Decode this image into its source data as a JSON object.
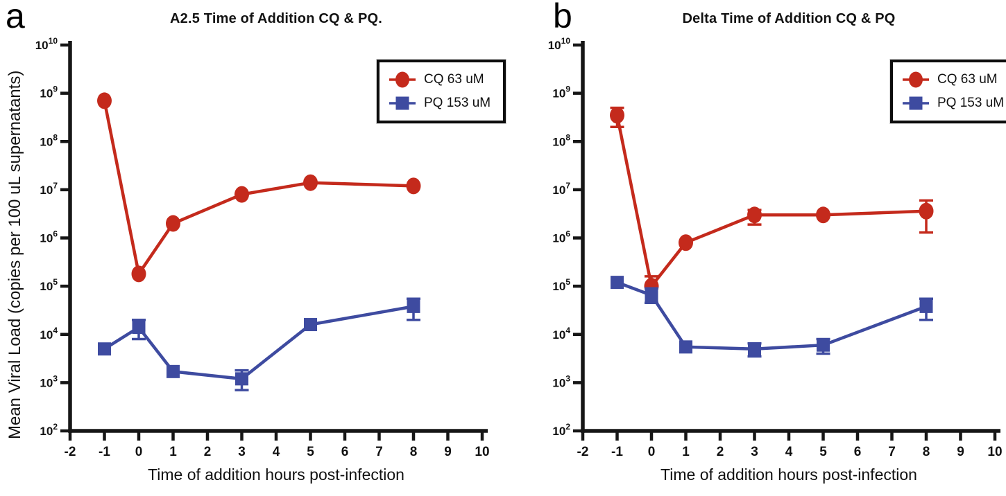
{
  "figure_colors": {
    "cq_red": "#c42a1c",
    "pq_blue": "#3e4ba0",
    "axis_black": "#161616"
  },
  "chart_data": [
    {
      "type": "line",
      "panel_letter": "a",
      "title": "A2.5 Time of Addition CQ & PQ.",
      "xlabel": "Time of addition hours post-infection",
      "ylabel": "Mean Viral Load  (copies per 100 uL supernatants)",
      "xlim": [
        -2,
        10
      ],
      "x_ticks": [
        -2,
        -1,
        0,
        1,
        2,
        3,
        4,
        5,
        6,
        7,
        8,
        9,
        10
      ],
      "y_scale": "log10",
      "y_tick_exponents": [
        10,
        9,
        8,
        7,
        6,
        5,
        4,
        3,
        2
      ],
      "ylim": [
        100.0,
        10000000000.0
      ],
      "grid": false,
      "legend_position": "upper right",
      "legend": [
        {
          "label": "CQ 63 uM",
          "marker": "circle",
          "color": "#c42a1c"
        },
        {
          "label": "PQ 153 uM",
          "marker": "square",
          "color": "#3e4ba0"
        }
      ],
      "series": [
        {
          "name": "CQ 63 uM",
          "marker": "circle",
          "color": "#c42a1c",
          "x": [
            -1,
            0,
            1,
            3,
            5,
            8
          ],
          "y": [
            700000000.0,
            180000.0,
            2000000.0,
            8000000.0,
            14000000.0,
            12000000.0
          ],
          "err_low": [
            null,
            null,
            null,
            null,
            null,
            null
          ],
          "err_high": [
            null,
            null,
            null,
            null,
            null,
            null
          ]
        },
        {
          "name": "PQ 153 uM",
          "marker": "square",
          "color": "#3e4ba0",
          "x": [
            -1,
            0,
            1,
            3,
            5,
            8
          ],
          "y": [
            5000.0,
            14000.0,
            1700.0,
            1200.0,
            16000.0,
            38000.0
          ],
          "err_low": [
            null,
            8000.0,
            null,
            700.0,
            null,
            20000.0
          ],
          "err_high": [
            null,
            20000.0,
            null,
            1800.0,
            null,
            55000.0
          ]
        }
      ]
    },
    {
      "type": "line",
      "panel_letter": "b",
      "title": "Delta Time of Addition CQ & PQ",
      "xlabel": "Time of addition hours post-infection",
      "xlim": [
        -2,
        10
      ],
      "x_ticks": [
        -2,
        -1,
        0,
        1,
        2,
        3,
        4,
        5,
        6,
        7,
        8,
        9,
        10
      ],
      "y_scale": "log10",
      "y_tick_exponents": [
        10,
        9,
        8,
        7,
        6,
        5,
        4,
        3,
        2
      ],
      "ylim": [
        100.0,
        10000000000.0
      ],
      "grid": false,
      "legend_position": "upper right",
      "legend": [
        {
          "label": "CQ 63 uM",
          "marker": "circle",
          "color": "#c42a1c"
        },
        {
          "label": "PQ 153 uM",
          "marker": "square",
          "color": "#3e4ba0"
        }
      ],
      "series": [
        {
          "name": "CQ 63 uM",
          "marker": "circle",
          "color": "#c42a1c",
          "x": [
            -1,
            0,
            1,
            3,
            5,
            8
          ],
          "y": [
            350000000.0,
            100000.0,
            800000.0,
            3000000.0,
            3000000.0,
            3600000.0
          ],
          "err_low": [
            200000000.0,
            45000.0,
            null,
            1900000.0,
            null,
            1300000.0
          ],
          "err_high": [
            500000000.0,
            160000.0,
            null,
            3800000.0,
            null,
            6000000.0
          ]
        },
        {
          "name": "PQ 153 uM",
          "marker": "square",
          "color": "#3e4ba0",
          "x": [
            -1,
            0,
            1,
            3,
            5,
            8
          ],
          "y": [
            120000.0,
            65000.0,
            5500.0,
            5000.0,
            6000.0,
            38000.0
          ],
          "err_low": [
            null,
            45000.0,
            null,
            3500.0,
            4000.0,
            20000.0
          ],
          "err_high": [
            null,
            90000.0,
            null,
            6500.0,
            8000.0,
            55000.0
          ]
        }
      ]
    }
  ]
}
